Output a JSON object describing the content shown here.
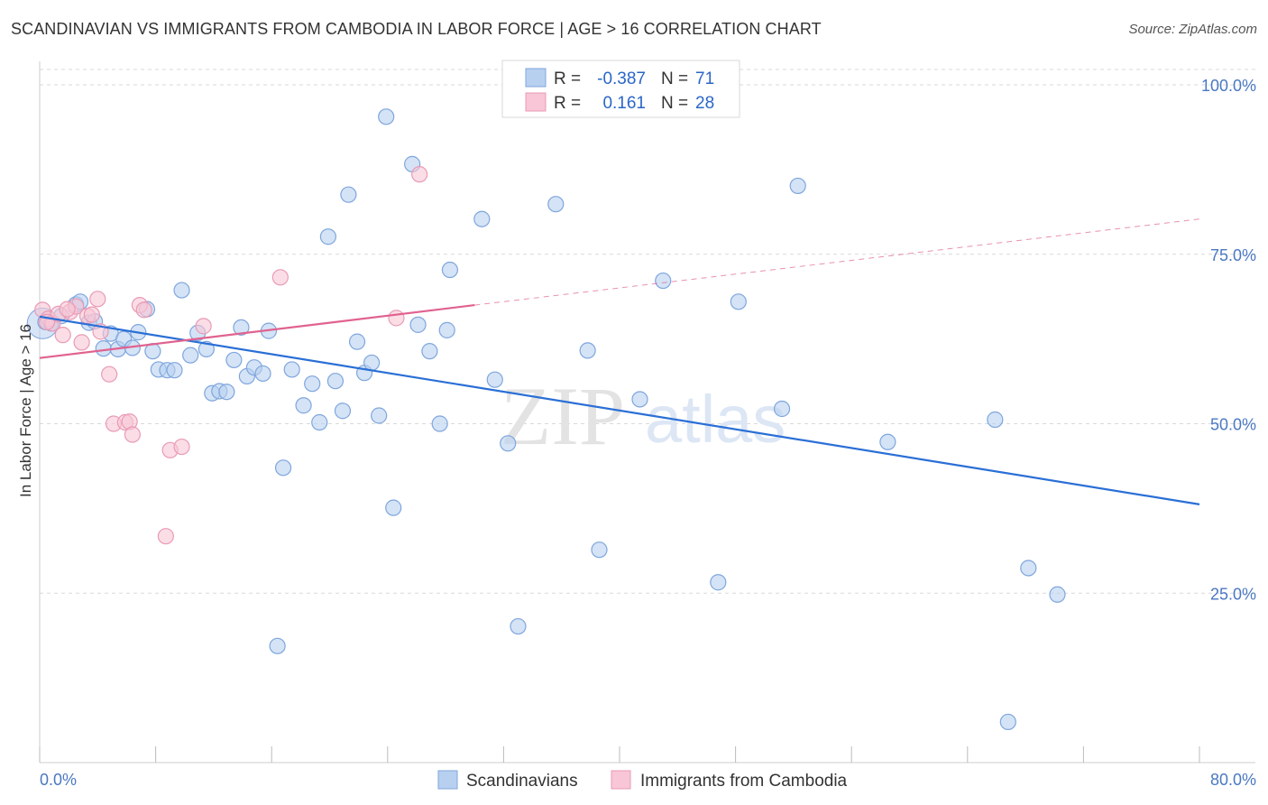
{
  "title": "SCANDINAVIAN VS IMMIGRANTS FROM CAMBODIA IN LABOR FORCE | AGE > 16 CORRELATION CHART",
  "source": "Source: ZipAtlas.com",
  "watermark": {
    "zip": "ZIP",
    "atlas": "atlas"
  },
  "colors": {
    "blue_fill": "#b8d0f0",
    "blue_stroke": "#7fa6dd",
    "blue_line": "#2a6fd6",
    "pink_fill": "#f8c6d6",
    "pink_stroke": "#e99bb5",
    "pink_line": "#e0628f",
    "grid": "#d9d9d9",
    "axis_text": "#4a78c2"
  },
  "legend_top": {
    "rows": [
      {
        "r_label": "R =",
        "r_value": "-0.387",
        "n_label": "N =",
        "n_value": "71",
        "color": "blue"
      },
      {
        "r_label": "R =",
        "r_value": "0.161",
        "n_label": "N =",
        "n_value": "28",
        "color": "pink"
      }
    ]
  },
  "legend_bottom": [
    {
      "label": "Scandinavians",
      "color": "blue"
    },
    {
      "label": "Immigrants from Cambodia",
      "color": "pink"
    }
  ],
  "chart_data": {
    "type": "scatter",
    "title": "SCANDINAVIAN VS IMMIGRANTS FROM CAMBODIA IN LABOR FORCE | AGE > 16 CORRELATION CHART",
    "xlabel": "",
    "ylabel": "In Labor Force | Age > 16",
    "xlim": [
      0,
      80
    ],
    "ylim": [
      0,
      102
    ],
    "x_tick_labels": [
      "0.0%",
      "80.0%"
    ],
    "y_ticks": [
      25,
      50,
      75,
      100
    ],
    "y_tick_labels": [
      "25.0%",
      "50.0%",
      "75.0%",
      "100.0%"
    ],
    "grid": "horizontal dashed",
    "legend_placement": "top-center",
    "series": [
      {
        "name": "Scandinavians",
        "color": "#b8d0f0",
        "trend": {
          "x": [
            0,
            80
          ],
          "y": [
            65.8,
            38.1
          ]
        },
        "points": [
          [
            0.4,
            65.0
          ],
          [
            0.8,
            64.8
          ],
          [
            1.5,
            65.9
          ],
          [
            2.5,
            67.6
          ],
          [
            2.8,
            68.0
          ],
          [
            3.4,
            64.9
          ],
          [
            3.8,
            65.1
          ],
          [
            4.4,
            61.1
          ],
          [
            4.9,
            63.3
          ],
          [
            5.4,
            61.0
          ],
          [
            5.8,
            62.5
          ],
          [
            6.4,
            61.2
          ],
          [
            6.8,
            63.5
          ],
          [
            7.4,
            66.9
          ],
          [
            7.8,
            60.7
          ],
          [
            8.2,
            58.0
          ],
          [
            8.8,
            57.9
          ],
          [
            9.3,
            57.9
          ],
          [
            9.8,
            69.7
          ],
          [
            10.4,
            60.1
          ],
          [
            10.9,
            63.4
          ],
          [
            11.5,
            61.0
          ],
          [
            11.9,
            54.5
          ],
          [
            12.4,
            54.8
          ],
          [
            12.9,
            54.7
          ],
          [
            13.4,
            59.4
          ],
          [
            13.9,
            64.2
          ],
          [
            14.3,
            57.0
          ],
          [
            14.8,
            58.3
          ],
          [
            15.4,
            57.4
          ],
          [
            15.8,
            63.7
          ],
          [
            16.4,
            17.2
          ],
          [
            16.8,
            43.5
          ],
          [
            17.4,
            58.0
          ],
          [
            18.2,
            52.7
          ],
          [
            18.8,
            55.9
          ],
          [
            19.3,
            50.2
          ],
          [
            19.9,
            77.6
          ],
          [
            20.4,
            56.3
          ],
          [
            20.9,
            51.9
          ],
          [
            21.3,
            83.8
          ],
          [
            21.9,
            62.1
          ],
          [
            22.4,
            57.5
          ],
          [
            22.9,
            59.0
          ],
          [
            23.4,
            51.2
          ],
          [
            23.9,
            95.3
          ],
          [
            24.4,
            37.6
          ],
          [
            25.7,
            88.3
          ],
          [
            26.1,
            64.6
          ],
          [
            26.9,
            60.7
          ],
          [
            27.6,
            50.0
          ],
          [
            28.1,
            63.8
          ],
          [
            28.3,
            72.7
          ],
          [
            30.5,
            80.2
          ],
          [
            31.4,
            56.5
          ],
          [
            32.3,
            47.1
          ],
          [
            33.0,
            20.1
          ],
          [
            35.6,
            82.4
          ],
          [
            37.8,
            60.8
          ],
          [
            38.6,
            31.4
          ],
          [
            41.4,
            53.6
          ],
          [
            43.0,
            71.1
          ],
          [
            46.8,
            26.6
          ],
          [
            48.2,
            68.0
          ],
          [
            51.2,
            52.2
          ],
          [
            52.3,
            85.1
          ],
          [
            58.5,
            47.3
          ],
          [
            65.9,
            50.6
          ],
          [
            66.8,
            6.0
          ],
          [
            68.2,
            28.7
          ],
          [
            70.2,
            24.8
          ]
        ]
      },
      {
        "name": "Immigrants from Cambodia",
        "color": "#f8c6d6",
        "trend": {
          "x": [
            0,
            30
          ],
          "y": [
            59.7,
            67.5
          ]
        },
        "trend_extended": {
          "x": [
            30,
            80
          ],
          "y": [
            67.5,
            80.2
          ]
        },
        "points": [
          [
            0.2,
            66.8
          ],
          [
            0.6,
            65.5
          ],
          [
            0.9,
            64.8
          ],
          [
            1.3,
            66.2
          ],
          [
            1.6,
            63.1
          ],
          [
            2.1,
            66.5
          ],
          [
            2.5,
            67.3
          ],
          [
            2.9,
            62.0
          ],
          [
            3.3,
            65.9
          ],
          [
            3.6,
            66.1
          ],
          [
            4.0,
            68.4
          ],
          [
            4.2,
            63.6
          ],
          [
            4.8,
            57.3
          ],
          [
            5.1,
            50.0
          ],
          [
            5.9,
            50.2
          ],
          [
            6.2,
            50.3
          ],
          [
            6.4,
            48.4
          ],
          [
            6.9,
            67.5
          ],
          [
            7.2,
            66.8
          ],
          [
            8.7,
            33.4
          ],
          [
            9.0,
            46.1
          ],
          [
            9.8,
            46.6
          ],
          [
            11.3,
            64.4
          ],
          [
            16.6,
            71.6
          ],
          [
            24.6,
            65.6
          ],
          [
            26.2,
            86.8
          ],
          [
            0.5,
            65.0
          ],
          [
            1.9,
            66.9
          ]
        ]
      }
    ]
  }
}
